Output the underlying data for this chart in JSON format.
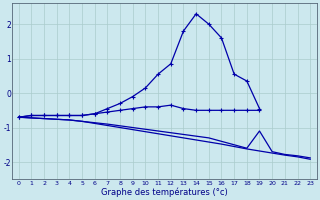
{
  "xlabel": "Graphe des températures (°c)",
  "background_color": "#cce8ee",
  "grid_color": "#aacccc",
  "line_color": "#0000aa",
  "ylim": [
    -2.5,
    2.6
  ],
  "xlim": [
    -0.5,
    23.5
  ],
  "yticks": [
    -2,
    -1,
    0,
    1,
    2
  ],
  "hours": [
    0,
    1,
    2,
    3,
    4,
    5,
    6,
    7,
    8,
    9,
    10,
    11,
    12,
    13,
    14,
    15,
    16,
    17,
    18,
    19,
    20,
    21,
    22,
    23
  ],
  "line1": [
    -0.7,
    -0.65,
    -0.65,
    -0.65,
    -0.65,
    -0.65,
    -0.6,
    -0.45,
    -0.3,
    -0.1,
    0.15,
    0.55,
    0.85,
    1.8,
    2.3,
    2.0,
    1.6,
    0.55,
    0.35,
    -0.45,
    null,
    null,
    null,
    null
  ],
  "line2": [
    -0.7,
    -0.65,
    -0.65,
    -0.65,
    -0.65,
    -0.65,
    -0.6,
    -0.55,
    -0.5,
    -0.45,
    -0.4,
    -0.4,
    -0.35,
    -0.45,
    -0.5,
    -0.5,
    -0.5,
    -0.5,
    -0.5,
    -0.5,
    null,
    null,
    null,
    null
  ],
  "line3": [
    -0.7,
    -0.72,
    -0.74,
    -0.76,
    -0.78,
    -0.82,
    -0.86,
    -0.9,
    -0.95,
    -1.0,
    -1.05,
    -1.1,
    -1.15,
    -1.2,
    -1.25,
    -1.3,
    -1.4,
    -1.5,
    -1.6,
    -1.1,
    -1.7,
    -1.78,
    -1.82,
    -1.88
  ],
  "line4": [
    -0.7,
    -0.72,
    -0.74,
    -0.76,
    -0.78,
    -0.82,
    -0.88,
    -0.94,
    -1.0,
    -1.06,
    -1.12,
    -1.18,
    -1.24,
    -1.3,
    -1.36,
    -1.42,
    -1.48,
    -1.55,
    -1.62,
    -1.68,
    -1.74,
    -1.8,
    -1.85,
    -1.92
  ]
}
